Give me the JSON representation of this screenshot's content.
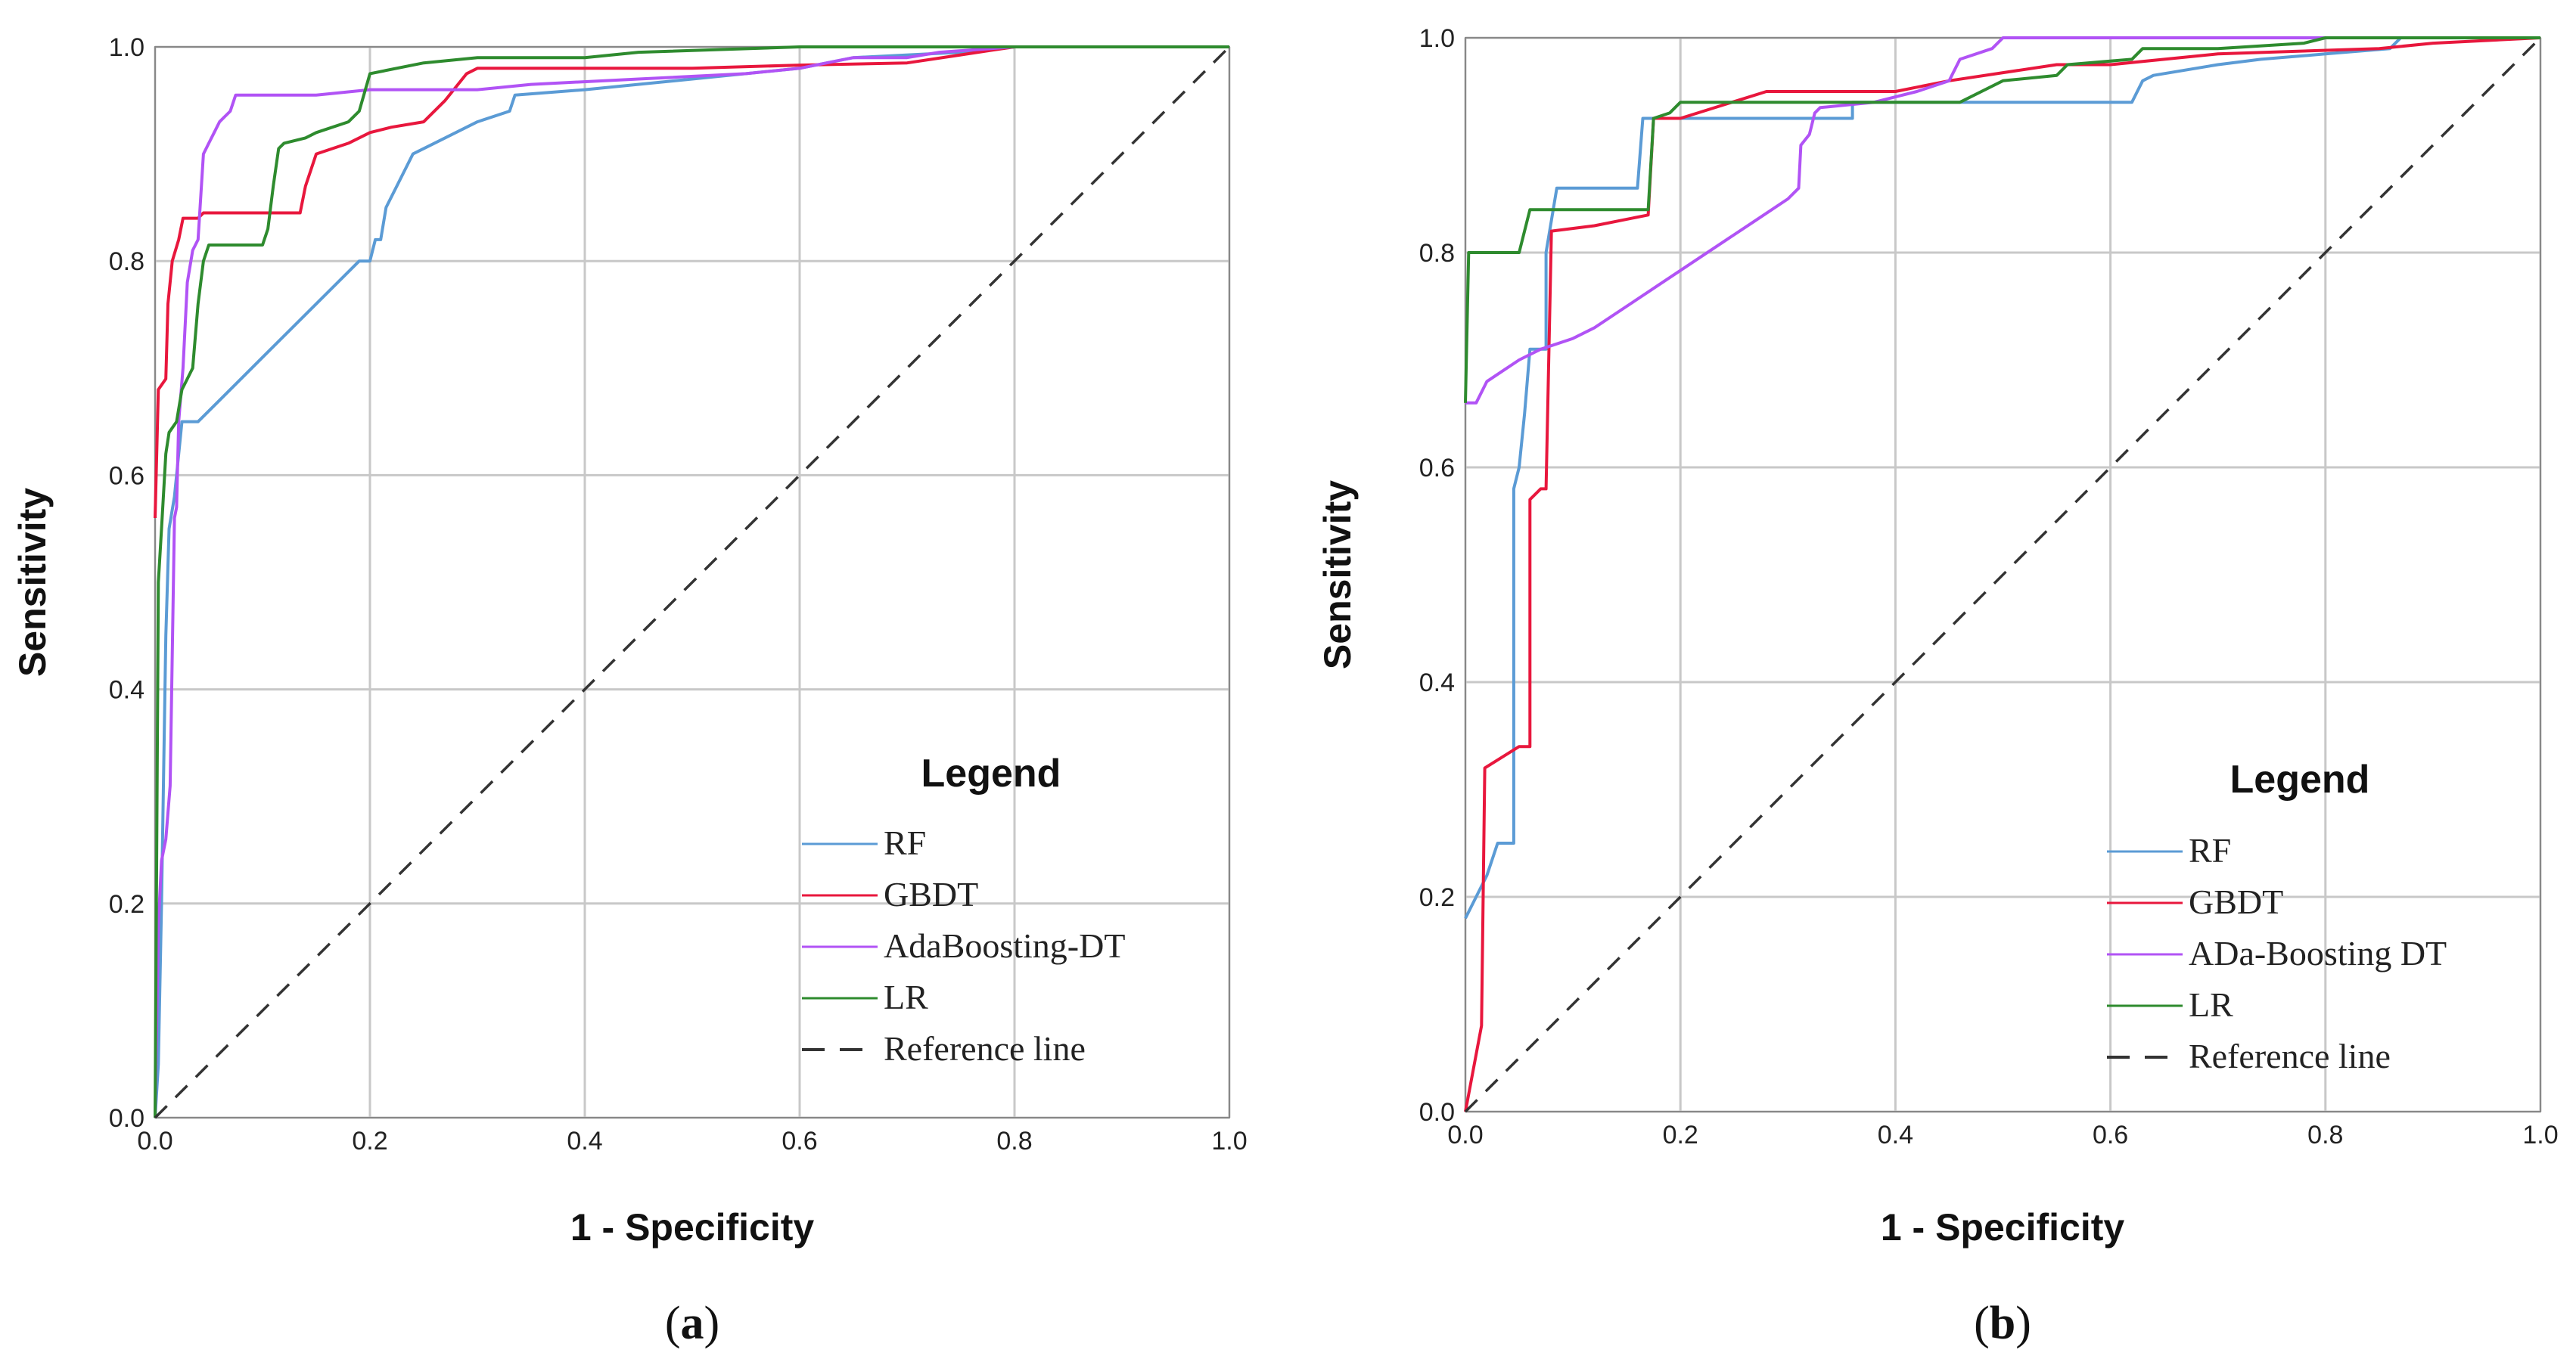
{
  "figure": {
    "colors": {
      "RF": "#5b9bd5",
      "GBDT": "#e8173d",
      "ADA": "#b153f5",
      "LR": "#2e8b2e",
      "REF": "#333333",
      "GRID": "#c8c8c8",
      "FRAME": "#888888"
    }
  },
  "chart_data": [
    {
      "type": "line",
      "panel": "(a)",
      "panel_letter": "a",
      "xlabel": "1 - Specificity",
      "ylabel": "Sensitivity",
      "xlim": [
        0,
        1
      ],
      "ylim": [
        0,
        1
      ],
      "xticks": [
        "0.0",
        "0.2",
        "0.4",
        "0.6",
        "0.8",
        "1.0"
      ],
      "yticks": [
        "0.0",
        "0.2",
        "0.4",
        "0.6",
        "0.8",
        "1.0"
      ],
      "grid": true,
      "legend": {
        "title": "Legend",
        "placement": "bottom-right"
      },
      "series": [
        {
          "name": "RF",
          "color_key": "RF",
          "dash": false,
          "points": [
            [
              0,
              0
            ],
            [
              0.003,
              0.05
            ],
            [
              0.006,
              0.2
            ],
            [
              0.01,
              0.45
            ],
            [
              0.013,
              0.55
            ],
            [
              0.018,
              0.58
            ],
            [
              0.02,
              0.6
            ],
            [
              0.025,
              0.65
            ],
            [
              0.04,
              0.65
            ],
            [
              0.06,
              0.67
            ],
            [
              0.1,
              0.71
            ],
            [
              0.15,
              0.76
            ],
            [
              0.19,
              0.8
            ],
            [
              0.2,
              0.8
            ],
            [
              0.205,
              0.82
            ],
            [
              0.21,
              0.82
            ],
            [
              0.215,
              0.85
            ],
            [
              0.225,
              0.87
            ],
            [
              0.24,
              0.9
            ],
            [
              0.26,
              0.91
            ],
            [
              0.3,
              0.93
            ],
            [
              0.33,
              0.94
            ],
            [
              0.335,
              0.955
            ],
            [
              0.4,
              0.96
            ],
            [
              0.5,
              0.97
            ],
            [
              0.6,
              0.98
            ],
            [
              0.65,
              0.99
            ],
            [
              0.75,
              0.995
            ],
            [
              0.8,
              1
            ],
            [
              1,
              1
            ]
          ]
        },
        {
          "name": "GBDT",
          "color_key": "GBDT",
          "dash": false,
          "points": [
            [
              0,
              0.56
            ],
            [
              0.003,
              0.68
            ],
            [
              0.01,
              0.69
            ],
            [
              0.012,
              0.76
            ],
            [
              0.016,
              0.8
            ],
            [
              0.022,
              0.82
            ],
            [
              0.026,
              0.84
            ],
            [
              0.04,
              0.84
            ],
            [
              0.045,
              0.845
            ],
            [
              0.1,
              0.845
            ],
            [
              0.135,
              0.845
            ],
            [
              0.14,
              0.87
            ],
            [
              0.15,
              0.9
            ],
            [
              0.18,
              0.91
            ],
            [
              0.2,
              0.92
            ],
            [
              0.22,
              0.925
            ],
            [
              0.25,
              0.93
            ],
            [
              0.27,
              0.95
            ],
            [
              0.29,
              0.975
            ],
            [
              0.3,
              0.98
            ],
            [
              0.4,
              0.98
            ],
            [
              0.5,
              0.98
            ],
            [
              0.6,
              0.983
            ],
            [
              0.7,
              0.985
            ],
            [
              0.78,
              0.997
            ],
            [
              0.8,
              1
            ],
            [
              1,
              1
            ]
          ]
        },
        {
          "name": "AdaBoosting-DT",
          "color_key": "ADA",
          "dash": false,
          "points": [
            [
              0,
              0
            ],
            [
              0.003,
              0.18
            ],
            [
              0.006,
              0.24
            ],
            [
              0.01,
              0.26
            ],
            [
              0.014,
              0.31
            ],
            [
              0.018,
              0.56
            ],
            [
              0.02,
              0.57
            ],
            [
              0.022,
              0.65
            ],
            [
              0.026,
              0.7
            ],
            [
              0.03,
              0.78
            ],
            [
              0.035,
              0.81
            ],
            [
              0.04,
              0.82
            ],
            [
              0.045,
              0.9
            ],
            [
              0.05,
              0.91
            ],
            [
              0.055,
              0.92
            ],
            [
              0.06,
              0.93
            ],
            [
              0.065,
              0.935
            ],
            [
              0.07,
              0.94
            ],
            [
              0.075,
              0.955
            ],
            [
              0.1,
              0.955
            ],
            [
              0.15,
              0.955
            ],
            [
              0.2,
              0.96
            ],
            [
              0.3,
              0.96
            ],
            [
              0.35,
              0.965
            ],
            [
              0.45,
              0.97
            ],
            [
              0.55,
              0.975
            ],
            [
              0.6,
              0.98
            ],
            [
              0.65,
              0.99
            ],
            [
              0.7,
              0.99
            ],
            [
              0.73,
              0.995
            ],
            [
              0.8,
              1
            ],
            [
              1,
              1
            ]
          ]
        },
        {
          "name": "LR",
          "color_key": "LR",
          "dash": false,
          "points": [
            [
              0,
              0
            ],
            [
              0.003,
              0.5
            ],
            [
              0.006,
              0.55
            ],
            [
              0.01,
              0.62
            ],
            [
              0.013,
              0.64
            ],
            [
              0.02,
              0.65
            ],
            [
              0.025,
              0.68
            ],
            [
              0.03,
              0.69
            ],
            [
              0.035,
              0.7
            ],
            [
              0.04,
              0.76
            ],
            [
              0.045,
              0.8
            ],
            [
              0.05,
              0.815
            ],
            [
              0.1,
              0.815
            ],
            [
              0.105,
              0.83
            ],
            [
              0.11,
              0.87
            ],
            [
              0.115,
              0.905
            ],
            [
              0.12,
              0.91
            ],
            [
              0.14,
              0.915
            ],
            [
              0.15,
              0.92
            ],
            [
              0.18,
              0.93
            ],
            [
              0.19,
              0.94
            ],
            [
              0.2,
              0.975
            ],
            [
              0.25,
              0.985
            ],
            [
              0.3,
              0.99
            ],
            [
              0.4,
              0.99
            ],
            [
              0.45,
              0.995
            ],
            [
              0.6,
              1
            ],
            [
              1,
              1
            ]
          ]
        },
        {
          "name": "Reference line",
          "color_key": "REF",
          "dash": true,
          "points": [
            [
              0,
              0
            ],
            [
              1,
              1
            ]
          ]
        }
      ]
    },
    {
      "type": "line",
      "panel": "(b)",
      "panel_letter": "b",
      "xlabel": "1 - Specificity",
      "ylabel": "Sensitivity",
      "xlim": [
        0,
        1
      ],
      "ylim": [
        0,
        1
      ],
      "xticks": [
        "0.0",
        "0.2",
        "0.4",
        "0.6",
        "0.8",
        "1.0"
      ],
      "yticks": [
        "0.0",
        "0.2",
        "0.4",
        "0.6",
        "0.8",
        "1.0"
      ],
      "grid": true,
      "legend": {
        "title": "Legend",
        "placement": "bottom-right"
      },
      "series": [
        {
          "name": "RF",
          "color_key": "RF",
          "dash": false,
          "points": [
            [
              0,
              0.18
            ],
            [
              0.01,
              0.2
            ],
            [
              0.02,
              0.22
            ],
            [
              0.03,
              0.25
            ],
            [
              0.045,
              0.25
            ],
            [
              0.045,
              0.58
            ],
            [
              0.05,
              0.6
            ],
            [
              0.055,
              0.65
            ],
            [
              0.06,
              0.71
            ],
            [
              0.075,
              0.71
            ],
            [
              0.075,
              0.8
            ],
            [
              0.085,
              0.86
            ],
            [
              0.16,
              0.86
            ],
            [
              0.165,
              0.925
            ],
            [
              0.36,
              0.925
            ],
            [
              0.36,
              0.94
            ],
            [
              0.62,
              0.94
            ],
            [
              0.63,
              0.96
            ],
            [
              0.64,
              0.965
            ],
            [
              0.7,
              0.975
            ],
            [
              0.74,
              0.98
            ],
            [
              0.8,
              0.985
            ],
            [
              0.86,
              0.99
            ],
            [
              0.87,
              1
            ],
            [
              1,
              1
            ]
          ]
        },
        {
          "name": "GBDT",
          "color_key": "GBDT",
          "dash": false,
          "points": [
            [
              0,
              0
            ],
            [
              0.015,
              0.08
            ],
            [
              0.018,
              0.32
            ],
            [
              0.05,
              0.34
            ],
            [
              0.06,
              0.34
            ],
            [
              0.06,
              0.57
            ],
            [
              0.07,
              0.58
            ],
            [
              0.075,
              0.58
            ],
            [
              0.08,
              0.82
            ],
            [
              0.12,
              0.825
            ],
            [
              0.17,
              0.835
            ],
            [
              0.175,
              0.925
            ],
            [
              0.2,
              0.925
            ],
            [
              0.28,
              0.95
            ],
            [
              0.4,
              0.95
            ],
            [
              0.45,
              0.96
            ],
            [
              0.55,
              0.975
            ],
            [
              0.6,
              0.975
            ],
            [
              0.7,
              0.985
            ],
            [
              0.85,
              0.99
            ],
            [
              0.9,
              0.995
            ],
            [
              1,
              1
            ]
          ]
        },
        {
          "name": "ADa-Boosting DT",
          "color_key": "ADA",
          "dash": false,
          "points": [
            [
              0,
              0.66
            ],
            [
              0.01,
              0.66
            ],
            [
              0.02,
              0.68
            ],
            [
              0.035,
              0.69
            ],
            [
              0.05,
              0.7
            ],
            [
              0.07,
              0.71
            ],
            [
              0.1,
              0.72
            ],
            [
              0.12,
              0.73
            ],
            [
              0.15,
              0.75
            ],
            [
              0.18,
              0.77
            ],
            [
              0.21,
              0.79
            ],
            [
              0.24,
              0.81
            ],
            [
              0.27,
              0.83
            ],
            [
              0.3,
              0.85
            ],
            [
              0.31,
              0.86
            ],
            [
              0.312,
              0.9
            ],
            [
              0.32,
              0.91
            ],
            [
              0.325,
              0.93
            ],
            [
              0.33,
              0.935
            ],
            [
              0.38,
              0.94
            ],
            [
              0.42,
              0.95
            ],
            [
              0.45,
              0.96
            ],
            [
              0.46,
              0.98
            ],
            [
              0.49,
              0.99
            ],
            [
              0.5,
              1
            ],
            [
              1,
              1
            ]
          ]
        },
        {
          "name": "LR",
          "color_key": "LR",
          "dash": false,
          "points": [
            [
              0,
              0.66
            ],
            [
              0.003,
              0.8
            ],
            [
              0.05,
              0.8
            ],
            [
              0.06,
              0.84
            ],
            [
              0.17,
              0.84
            ],
            [
              0.175,
              0.925
            ],
            [
              0.19,
              0.93
            ],
            [
              0.2,
              0.94
            ],
            [
              0.25,
              0.94
            ],
            [
              0.46,
              0.94
            ],
            [
              0.5,
              0.96
            ],
            [
              0.55,
              0.965
            ],
            [
              0.56,
              0.975
            ],
            [
              0.62,
              0.98
            ],
            [
              0.63,
              0.99
            ],
            [
              0.7,
              0.99
            ],
            [
              0.78,
              0.995
            ],
            [
              0.8,
              1
            ],
            [
              1,
              1
            ]
          ]
        },
        {
          "name": "Reference line",
          "color_key": "REF",
          "dash": true,
          "points": [
            [
              0,
              0
            ],
            [
              1,
              1
            ]
          ]
        }
      ]
    }
  ]
}
